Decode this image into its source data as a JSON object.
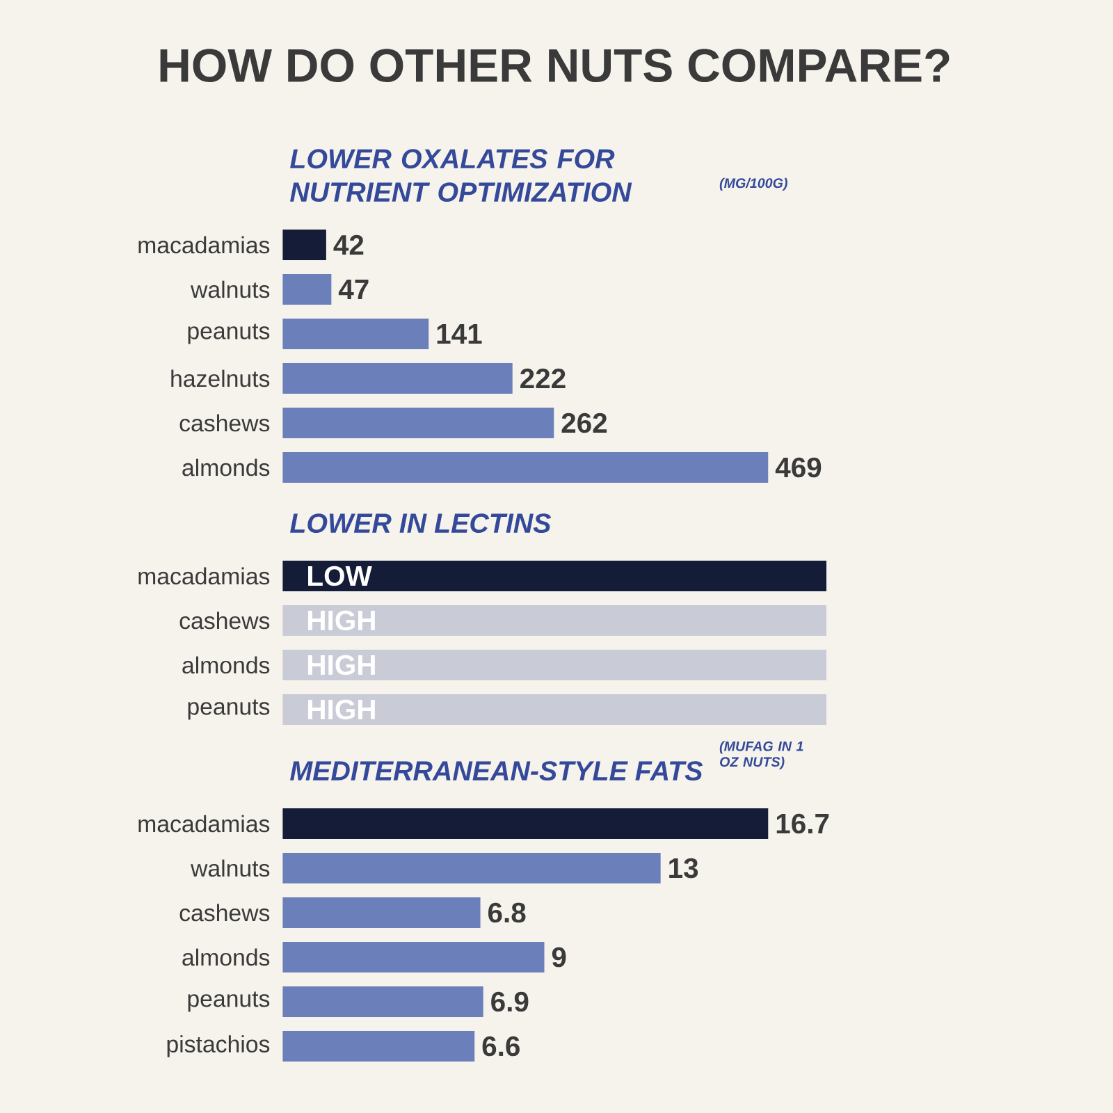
{
  "chart_data": [
    {
      "type": "bar",
      "orientation": "horizontal",
      "title": "HOW DO OTHER NUTS COMPARE?",
      "subtitle": "LOWER OXALATES FOR NUTRIENT OPTIMIZATION",
      "annotations": [
        "(MG/100G)"
      ],
      "categories": [
        "macadamias",
        "walnuts",
        "peanuts",
        "hazelnuts",
        "cashews",
        "almonds"
      ],
      "values": [
        42,
        47,
        141,
        222,
        262,
        469
      ],
      "colors": [
        "#141c38",
        "#6b7fba",
        "#6b7fba",
        "#6b7fba",
        "#6b7fba",
        "#6b7fba"
      ],
      "data_labels": true
    },
    {
      "type": "other",
      "title": "LOWER IN LECTINS",
      "categories": [
        "macadamias",
        "cashews",
        "almonds",
        "peanuts"
      ],
      "value_labels": [
        "LOW",
        "HIGH",
        "HIGH",
        "HIGH"
      ],
      "colors": [
        "#141c38",
        "#c9ccd6",
        "#c9ccd6",
        "#c9ccd6"
      ]
    },
    {
      "type": "bar",
      "orientation": "horizontal",
      "title": "MEDITERRANEAN-STYLE FATS",
      "annotations": [
        "(MUFAG IN 1 OZ NUTS)"
      ],
      "categories": [
        "macadamias",
        "walnuts",
        "cashews",
        "almonds",
        "peanuts",
        "pistachios"
      ],
      "values": [
        16.7,
        13,
        6.8,
        9,
        6.9,
        6.6
      ],
      "colors": [
        "#141c38",
        "#6b7fba",
        "#6b7fba",
        "#6b7fba",
        "#6b7fba",
        "#6b7fba"
      ],
      "data_labels": true
    }
  ]
}
